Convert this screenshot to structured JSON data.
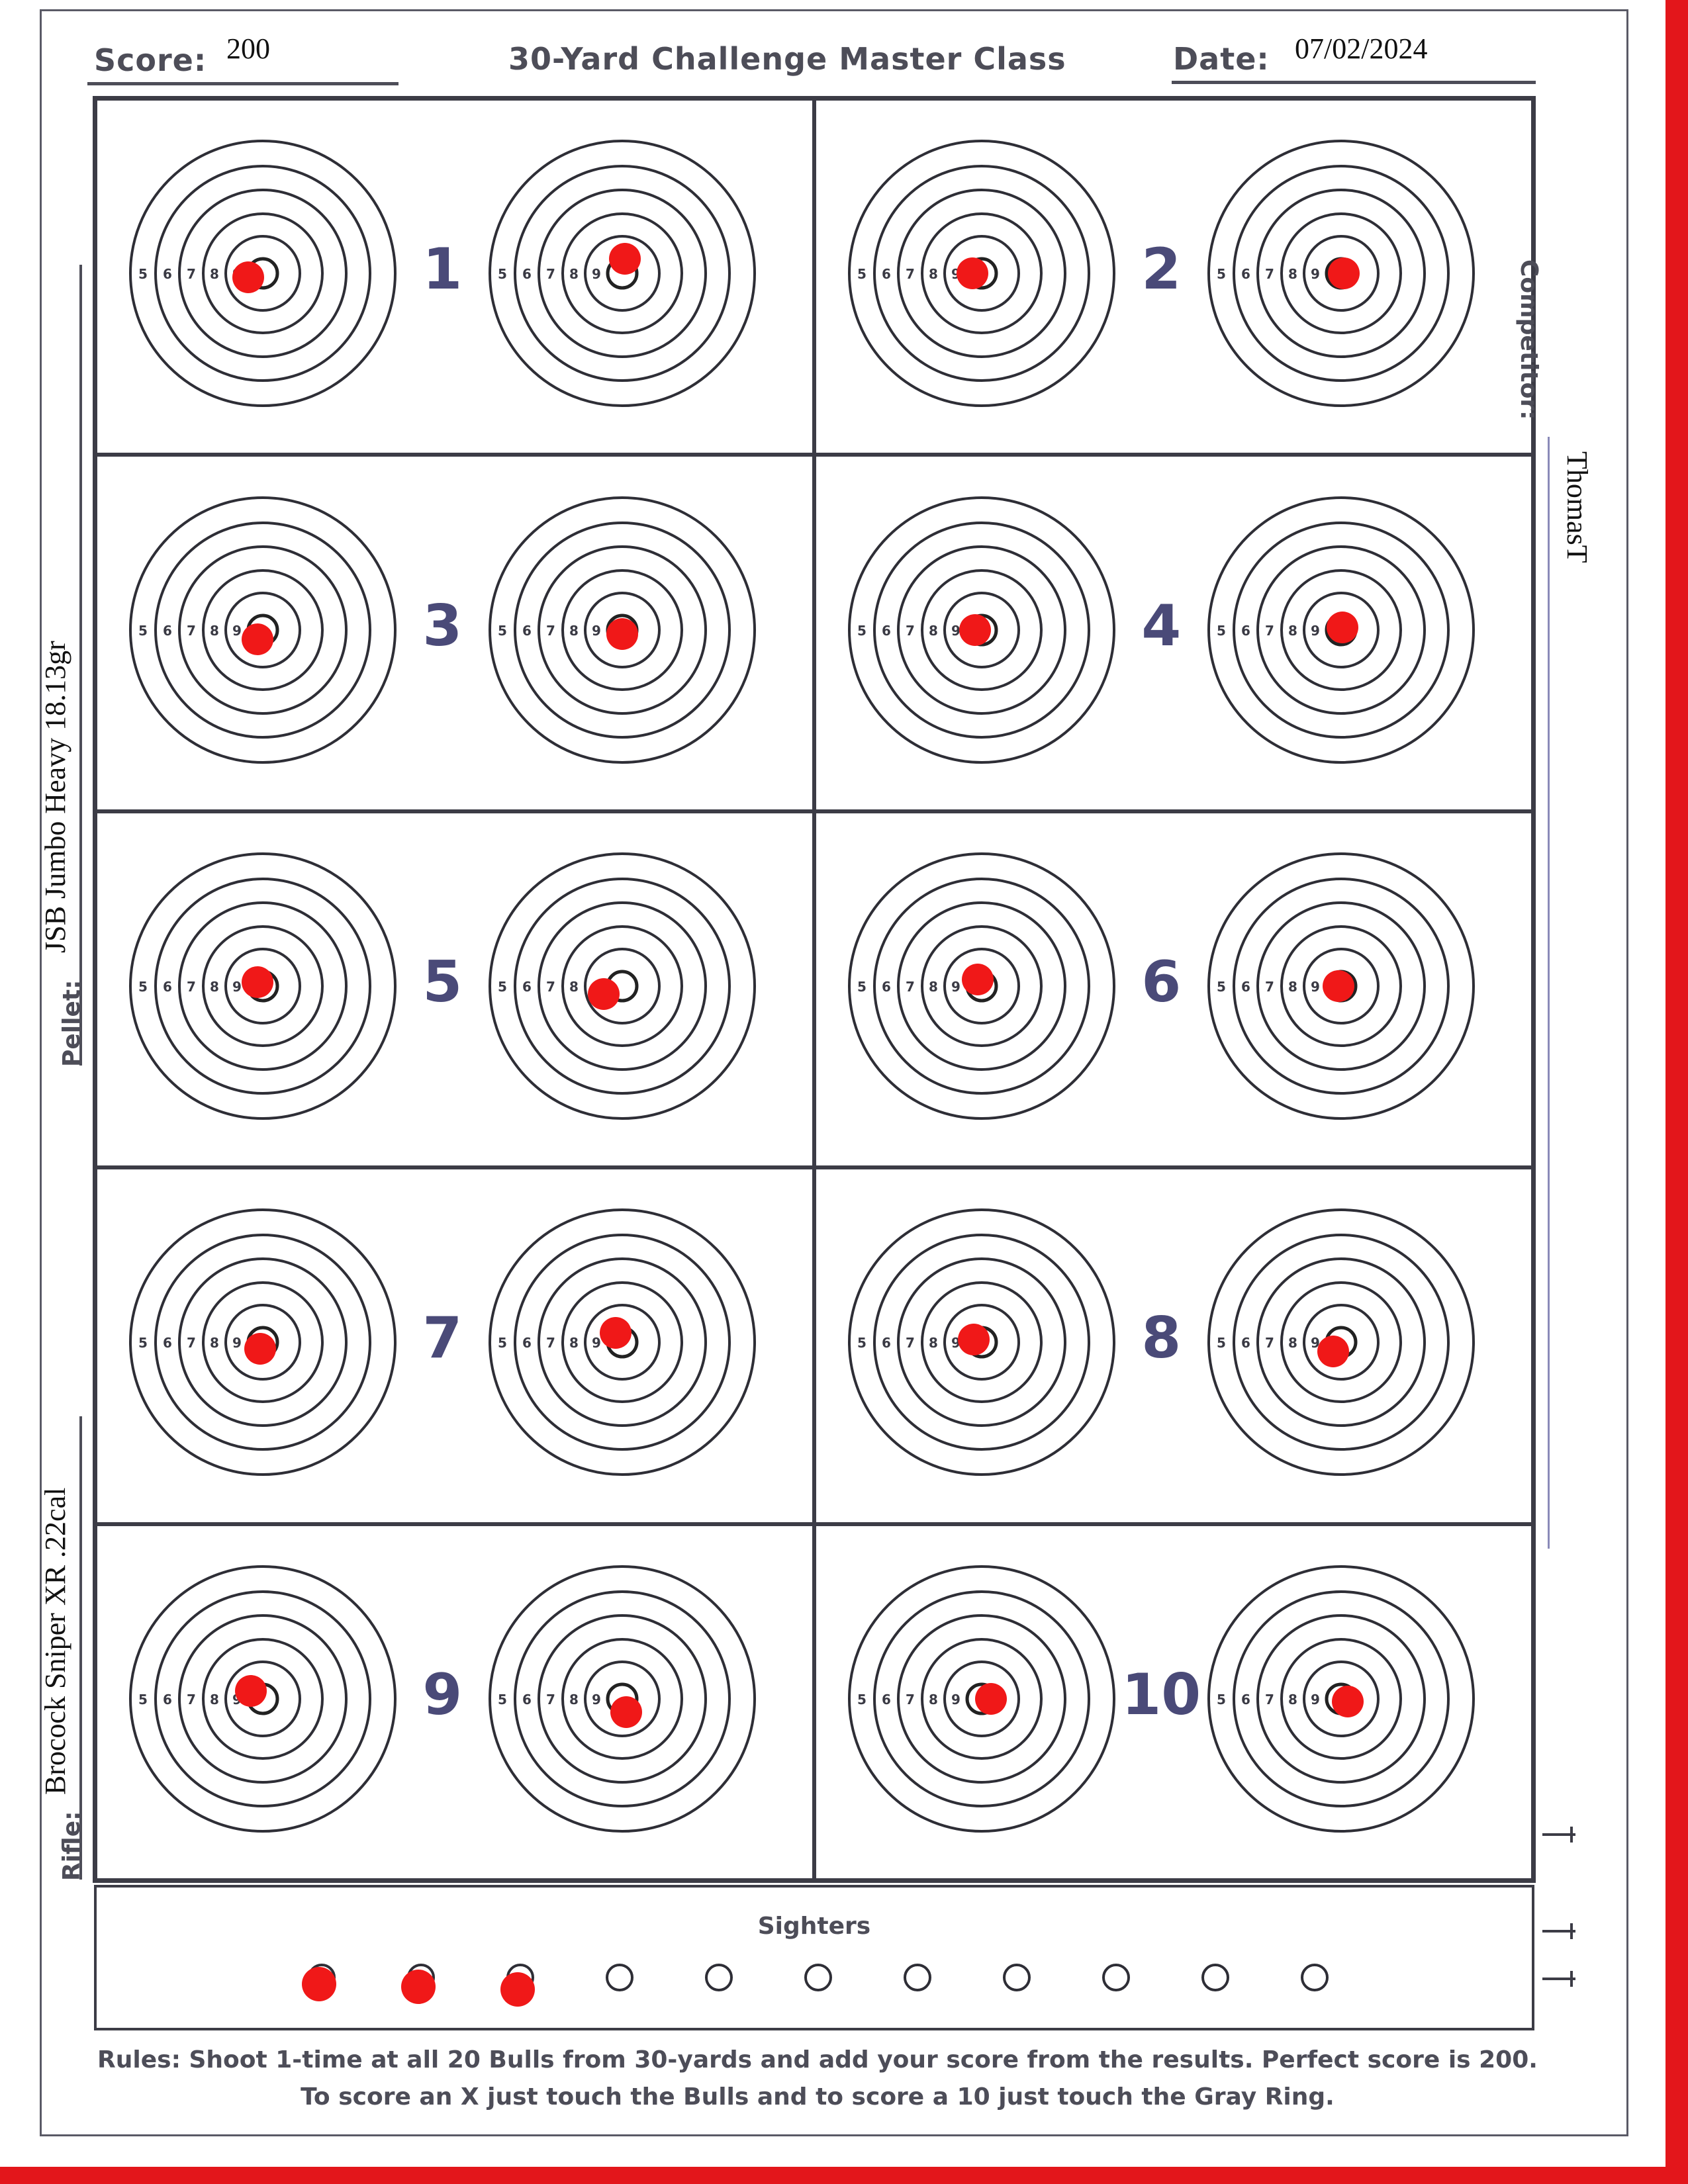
{
  "header": {
    "score_label": "Score:",
    "score_value": "200",
    "title": "30-Yard Challenge Master Class",
    "date_label": "Date:",
    "date_value": "07/02/2024"
  },
  "sidebar_right": {
    "competitor_label": "Competitor:",
    "competitor_value": "ThomasT"
  },
  "sidebar_left": {
    "pellet_label": "Pellet:",
    "pellet_value": "JSB Jumbo Heavy 18.13gr",
    "rifle_label": "Rifle:",
    "rifle_value": "Brocock Sniper XR .22cal"
  },
  "ring_numbers": [
    "5",
    "6",
    "7",
    "8",
    "9"
  ],
  "targets": [
    {
      "label": "1"
    },
    {
      "label": "2"
    },
    {
      "label": "3"
    },
    {
      "label": "4"
    },
    {
      "label": "5"
    },
    {
      "label": "6"
    },
    {
      "label": "7"
    },
    {
      "label": "8"
    },
    {
      "label": "9"
    },
    {
      "label": "10"
    }
  ],
  "sighters": {
    "label": "Sighters",
    "total": 11,
    "hits": 3
  },
  "rules": {
    "line1": "Rules: Shoot 1-time at all 20 Bulls from 30-yards and add your score from the results. Perfect score is 200.",
    "line2": "To score an X just touch the Bulls and to score a 10 just touch the Gray Ring."
  },
  "colors": {
    "ink": "#4d4d58",
    "number": "#4a4a78",
    "hit": "#f01818",
    "edge": "#e3161b"
  }
}
